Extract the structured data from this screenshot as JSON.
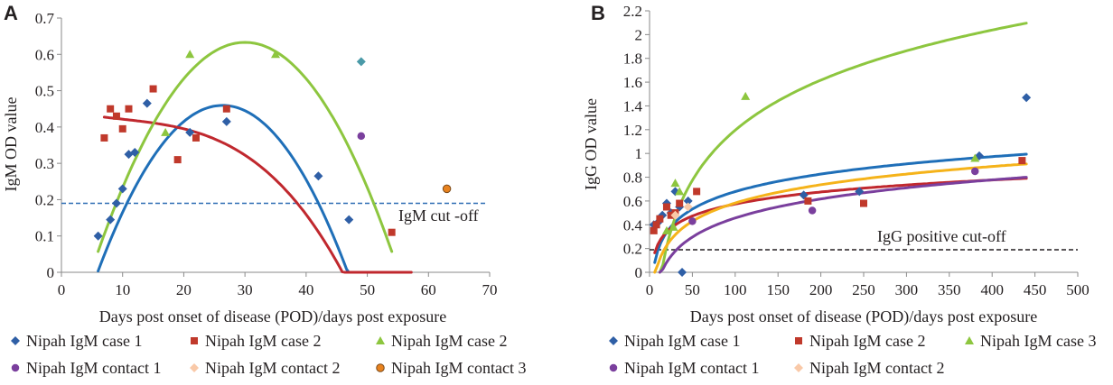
{
  "chart_data": [
    {
      "panel": "A",
      "type": "scatter",
      "xlabel": "Days post onset of disease (POD)/days post exposure",
      "ylabel": "IgM OD value",
      "xlim": [
        0,
        70
      ],
      "ylim": [
        0,
        0.7
      ],
      "xticks": [
        "0",
        "10",
        "20",
        "30",
        "40",
        "50",
        "60",
        "70"
      ],
      "yticks": [
        "0",
        "0.1",
        "0.2",
        "0.3",
        "0.4",
        "0.5",
        "0.6",
        "0.7"
      ],
      "cutoff": {
        "label": "IgM cut -off",
        "value": 0.19,
        "color": "#2e6db4"
      },
      "series": [
        {
          "name": "Nipah IgM case 1",
          "marker": "diamond",
          "color": "#2f5fa6",
          "points": [
            [
              6,
              0.1
            ],
            [
              8,
              0.145
            ],
            [
              9,
              0.19
            ],
            [
              10,
              0.23
            ],
            [
              11,
              0.325
            ],
            [
              12,
              0.33
            ],
            [
              14,
              0.465
            ],
            [
              21,
              0.385
            ],
            [
              27,
              0.415
            ],
            [
              42,
              0.265
            ],
            [
              47,
              0.145
            ]
          ],
          "fit": {
            "color": "#1f6fb8",
            "coef": [
              -0.0011,
              0.058,
              -0.305
            ],
            "xrange": [
              6,
              50.3
            ]
          }
        },
        {
          "name": "Nipah IgM case 2",
          "marker": "square",
          "color": "#c0392b",
          "points": [
            [
              7,
              0.37
            ],
            [
              8,
              0.45
            ],
            [
              9,
              0.43
            ],
            [
              10,
              0.395
            ],
            [
              11,
              0.45
            ],
            [
              15,
              0.505
            ],
            [
              19,
              0.31
            ],
            [
              22,
              0.37
            ],
            [
              27,
              0.45
            ],
            [
              54,
              0.11
            ]
          ],
          "fit": {
            "color": "#c0282e",
            "cubic": [
              -7.5e-06,
              0.00022,
              -0.004,
              0.447
            ],
            "xrange": [
              7,
              57.2
            ]
          }
        },
        {
          "name": "Nipah IgM case 2",
          "marker": "triangle",
          "color": "#8dc63f",
          "points": [
            [
              17,
              0.385
            ],
            [
              21,
              0.6
            ],
            [
              35,
              0.6
            ]
          ],
          "fit": {
            "color": "#8dc63f",
            "coef": [
              -0.001,
              0.06,
              -0.267
            ],
            "xrange": [
              6,
              54
            ]
          }
        },
        {
          "name": "Nipah IgM contact 1",
          "marker": "circle",
          "color": "#7a3f9d",
          "points": [
            [
              49,
              0.375
            ]
          ]
        },
        {
          "name": "Nipah IgM contact 2",
          "marker": "diamond",
          "color": "#f9c9a8",
          "points": []
        },
        {
          "name": "Nipah IgM contact 3",
          "marker": "circle-outline",
          "color": "#e8821e",
          "points": [
            [
              63,
              0.23
            ]
          ]
        },
        {
          "name": "teal point",
          "marker": "diamond",
          "color": "#4a9aa8",
          "legend": false,
          "points": [
            [
              49,
              0.58
            ]
          ]
        }
      ]
    },
    {
      "panel": "B",
      "type": "scatter",
      "xlabel": "Days post onset of disease (POD)/days post exposure",
      "ylabel": "IgG OD value",
      "xlim": [
        0,
        500
      ],
      "ylim": [
        0,
        2.2
      ],
      "xticks": [
        "0",
        "50",
        "100",
        "150",
        "200",
        "250",
        "300",
        "350",
        "400",
        "450",
        "500"
      ],
      "yticks": [
        "0",
        "0.2",
        "0.4",
        "0.6",
        "0.8",
        "1",
        "1.2",
        "1.4",
        "1.6",
        "1.8",
        "2",
        "2.2"
      ],
      "cutoff": {
        "label": "IgG positive cut-off",
        "value": 0.19,
        "color": "#231f20"
      },
      "series": [
        {
          "name": "Nipah IgM case 1",
          "marker": "diamond",
          "color": "#2f5fa6",
          "points": [
            [
              5,
              0.4
            ],
            [
              10,
              0.42
            ],
            [
              15,
              0.48
            ],
            [
              20,
              0.58
            ],
            [
              25,
              0.5
            ],
            [
              30,
              0.68
            ],
            [
              35,
              0.55
            ],
            [
              38,
              0.0
            ],
            [
              45,
              0.6
            ],
            [
              180,
              0.65
            ],
            [
              245,
              0.68
            ],
            [
              385,
              0.98
            ],
            [
              440,
              1.47
            ]
          ],
          "fit": {
            "color": "#1f6fb8",
            "log": [
              0.2123,
              -0.2988
            ],
            "xrange": [
              6,
              440
            ]
          }
        },
        {
          "name": "Nipah IgM case 2",
          "marker": "square",
          "color": "#c0392b",
          "points": [
            [
              5,
              0.35
            ],
            [
              8,
              0.4
            ],
            [
              12,
              0.45
            ],
            [
              20,
              0.55
            ],
            [
              25,
              0.48
            ],
            [
              30,
              0.5
            ],
            [
              35,
              0.58
            ],
            [
              55,
              0.68
            ],
            [
              185,
              0.6
            ],
            [
              250,
              0.58
            ],
            [
              435,
              0.94
            ]
          ],
          "fit": {
            "color": "#c0282e",
            "log": [
              0.1459,
              -0.0975
            ],
            "xrange": [
              6,
              440
            ]
          }
        },
        {
          "name": "Nipah IgM case 3",
          "marker": "triangle",
          "color": "#8dc63f",
          "points": [
            [
              20,
              0.35
            ],
            [
              28,
              0.38
            ],
            [
              30,
              0.75
            ],
            [
              35,
              0.68
            ],
            [
              112,
              1.48
            ],
            [
              380,
              0.96
            ]
          ],
          "fit": {
            "color": "#8dc63f",
            "log": [
              0.6081,
              -1.6051
            ],
            "xrange": [
              12,
              440
            ]
          }
        },
        {
          "name": "Nipah IgM contact 1",
          "marker": "circle",
          "color": "#7a3f9d",
          "points": [
            [
              50,
              0.43
            ],
            [
              190,
              0.52
            ],
            [
              380,
              0.85
            ]
          ],
          "fit": {
            "color": "#7a3f9d",
            "log": [
              0.2314,
              -0.6089
            ],
            "xrange": [
              12,
              440
            ]
          }
        },
        {
          "name": "Nipah IgM contact 2",
          "marker": "diamond",
          "color": "#f9c9a8",
          "points": [
            [
              30,
              0.48
            ],
            [
              45,
              0.55
            ]
          ],
          "fit": {
            "color": "#f5b31a",
            "log": [
              0.2218,
              -0.4386
            ],
            "xrange": [
              6,
              440
            ]
          }
        }
      ]
    }
  ],
  "panels": {
    "A": {
      "letter": "A"
    },
    "B": {
      "letter": "B"
    }
  }
}
